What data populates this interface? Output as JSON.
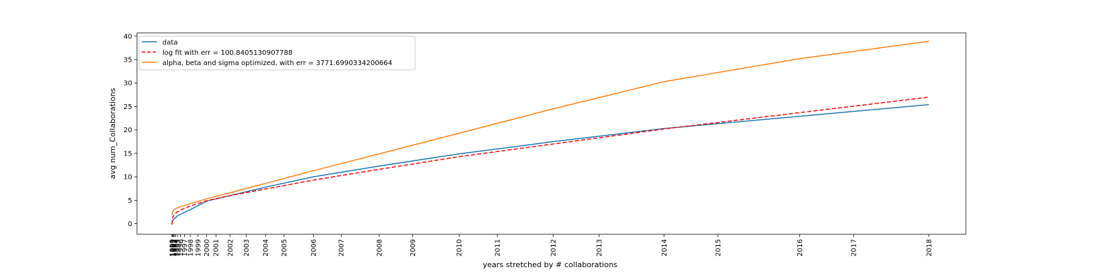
{
  "chart_data": {
    "type": "line",
    "title": "",
    "xlabel": "years stretched by # collaborations",
    "ylabel": "avg num_Collaborations",
    "ylim": [
      -2.25,
      40.7
    ],
    "yticks": [
      0,
      5,
      10,
      15,
      20,
      25,
      30,
      35,
      40
    ],
    "grid": false,
    "legend_position": "top-left",
    "x_tick_labels": [
      "1990",
      "1991",
      "1992",
      "1993",
      "1994",
      "1995",
      "1996",
      "1997",
      "1998",
      "1999",
      "2000",
      "2001",
      "2002",
      "2003",
      "2004",
      "2005",
      "2006",
      "2007",
      "2008",
      "2009",
      "2010",
      "2011",
      "2012",
      "2013",
      "2014",
      "2015",
      "2016",
      "2017",
      "2018"
    ],
    "x_tick_positions": [
      0,
      0.15,
      0.3,
      0.5,
      0.8,
      1.2,
      1.8,
      2.7,
      3.9,
      5.5,
      7.3,
      9.3,
      12.3,
      15.7,
      19.8,
      23.7,
      29.9,
      35.8,
      43.8,
      50.9,
      60.7,
      68.8,
      80.6,
      90.3,
      104.0,
      115.4,
      132.7,
      144.1,
      160.0
    ],
    "series": [
      {
        "name": "data",
        "color": "#1f77b4",
        "dash": "solid",
        "x": [
          0,
          0.3,
          1.2,
          3.9,
          7.3,
          12.3,
          19.8,
          29.9,
          43.8,
          60.7,
          80.6,
          104.0,
          132.7,
          160.0
        ],
        "y": [
          0.3,
          0.9,
          1.7,
          3.0,
          4.8,
          6.0,
          7.8,
          10.0,
          12.3,
          14.9,
          17.5,
          20.3,
          22.9,
          25.4
        ]
      },
      {
        "name": "log fit with err = 100.8405130907788",
        "color": "#ff0000",
        "dash": "dashed",
        "x": [
          0,
          0.1,
          0.3,
          0.6,
          1.2,
          2.0,
          3.9,
          7.3,
          12.3,
          19.8,
          29.9,
          43.8,
          60.7,
          80.6,
          104.0,
          132.7,
          160.0
        ],
        "y": [
          -0.2,
          1.0,
          1.7,
          2.1,
          2.6,
          3.0,
          3.8,
          4.9,
          6.0,
          7.4,
          9.3,
          11.6,
          14.3,
          17.0,
          20.2,
          23.7,
          27.0
        ]
      },
      {
        "name": "alpha, beta and sigma optimized, with err = 3771.6990334200664",
        "color": "#ff7f0e",
        "dash": "solid",
        "x": [
          0,
          0.1,
          0.3,
          0.6,
          1.2,
          2.0,
          3.9,
          7.3,
          12.3,
          19.8,
          29.9,
          43.8,
          60.7,
          80.6,
          104.0,
          132.7,
          160.0
        ],
        "y": [
          1.9,
          2.4,
          2.8,
          3.1,
          3.4,
          3.7,
          4.3,
          5.3,
          6.6,
          8.6,
          11.3,
          14.9,
          19.3,
          24.5,
          30.3,
          35.2,
          38.9
        ]
      }
    ]
  }
}
